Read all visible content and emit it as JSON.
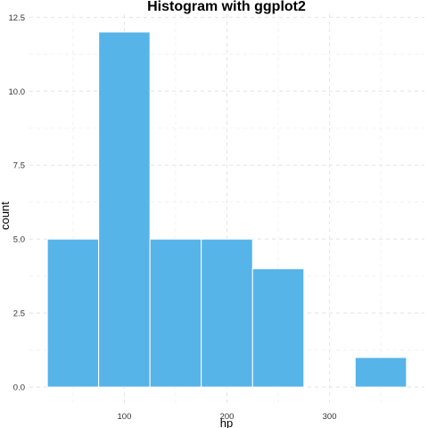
{
  "chart_data": {
    "type": "bar",
    "title": "Histogram with ggplot2",
    "xlabel": "hp",
    "ylabel": "count",
    "bin_width": 50,
    "bins": [
      {
        "start": 25,
        "end": 75,
        "count": 5
      },
      {
        "start": 75,
        "end": 125,
        "count": 12
      },
      {
        "start": 125,
        "end": 175,
        "count": 5
      },
      {
        "start": 175,
        "end": 225,
        "count": 5
      },
      {
        "start": 225,
        "end": 275,
        "count": 4
      },
      {
        "start": 275,
        "end": 325,
        "count": 0
      },
      {
        "start": 325,
        "end": 375,
        "count": 1
      }
    ],
    "xlim": [
      25,
      375
    ],
    "ylim": [
      0,
      12
    ],
    "x_ticks": [
      100,
      200,
      300
    ],
    "x_tick_labels": [
      "100",
      "200",
      "300"
    ],
    "y_ticks": [
      0,
      2.5,
      5,
      7.5,
      10,
      12.5
    ],
    "y_tick_labels": [
      "0.0",
      "2.5",
      "5.0",
      "7.5",
      "10.0",
      "12.5"
    ],
    "fill_color": "#56B4E9",
    "outline_color": "#ffffff",
    "grid": true,
    "legend": "none"
  }
}
